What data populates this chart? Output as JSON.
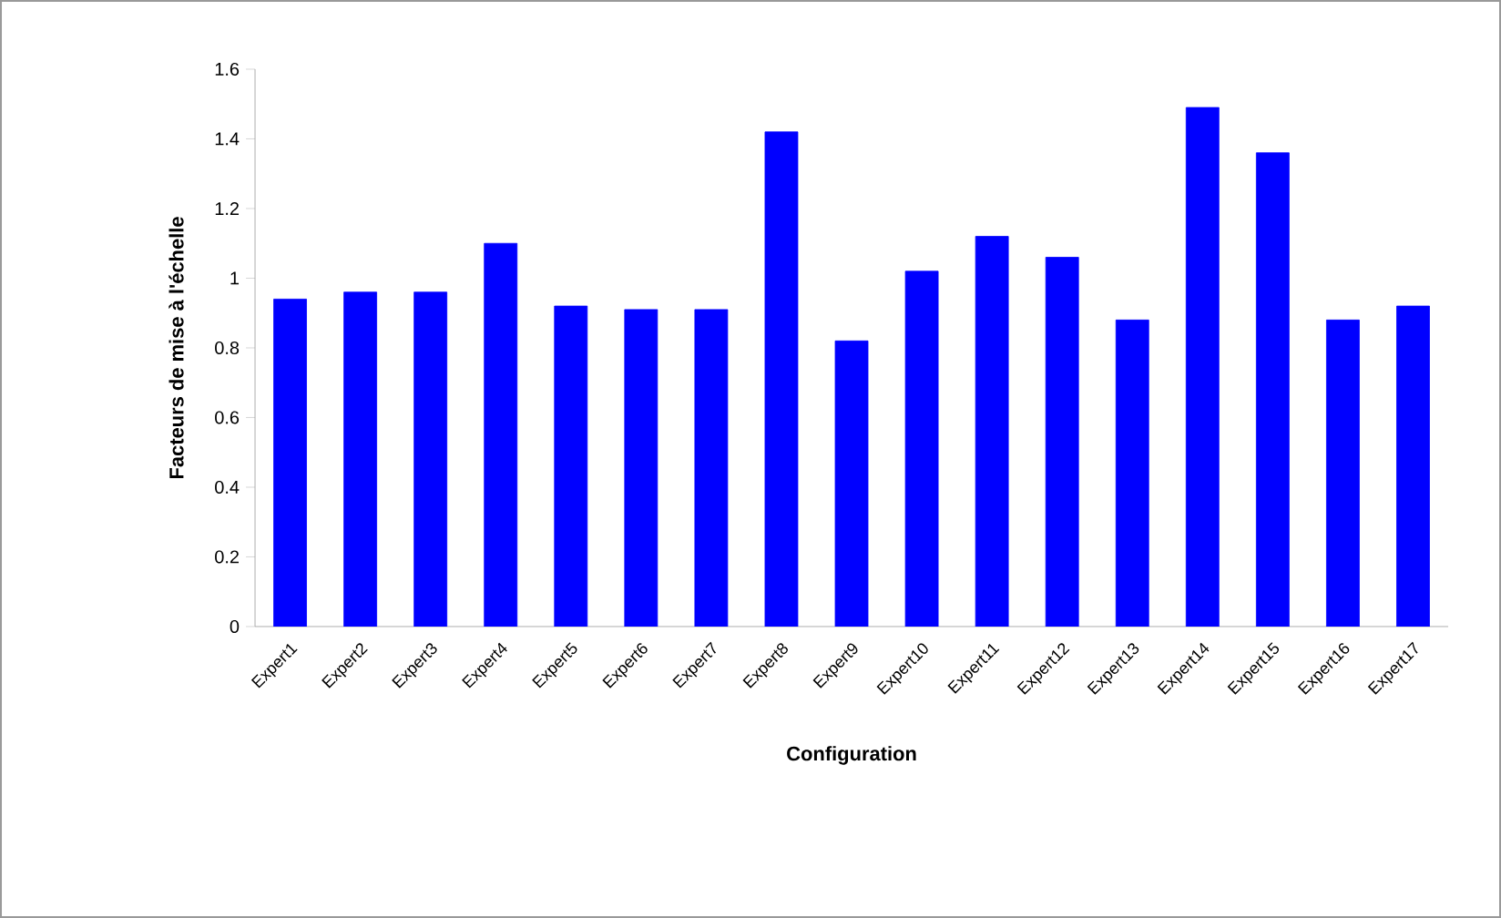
{
  "chart_data": {
    "type": "bar",
    "xlabel": "Configuration",
    "ylabel": "Facteurs de mise à l'échelle",
    "categories": [
      "Expert1",
      "Expert2",
      "Expert3",
      "Expert4",
      "Expert5",
      "Expert6",
      "Expert7",
      "Expert8",
      "Expert9",
      "Expert10",
      "Expert11",
      "Expert12",
      "Expert13",
      "Expert14",
      "Expert15",
      "Expert16",
      "Expert17"
    ],
    "values": [
      0.94,
      0.96,
      0.96,
      1.1,
      0.92,
      0.91,
      0.91,
      1.42,
      0.82,
      1.02,
      1.12,
      1.06,
      0.88,
      1.49,
      1.36,
      0.88,
      0.92
    ],
    "color": "#0000ff",
    "ylim": [
      0,
      1.6
    ],
    "yticks": [
      0,
      0.2,
      0.4,
      0.6,
      0.8,
      1,
      1.2,
      1.4,
      1.6
    ]
  }
}
